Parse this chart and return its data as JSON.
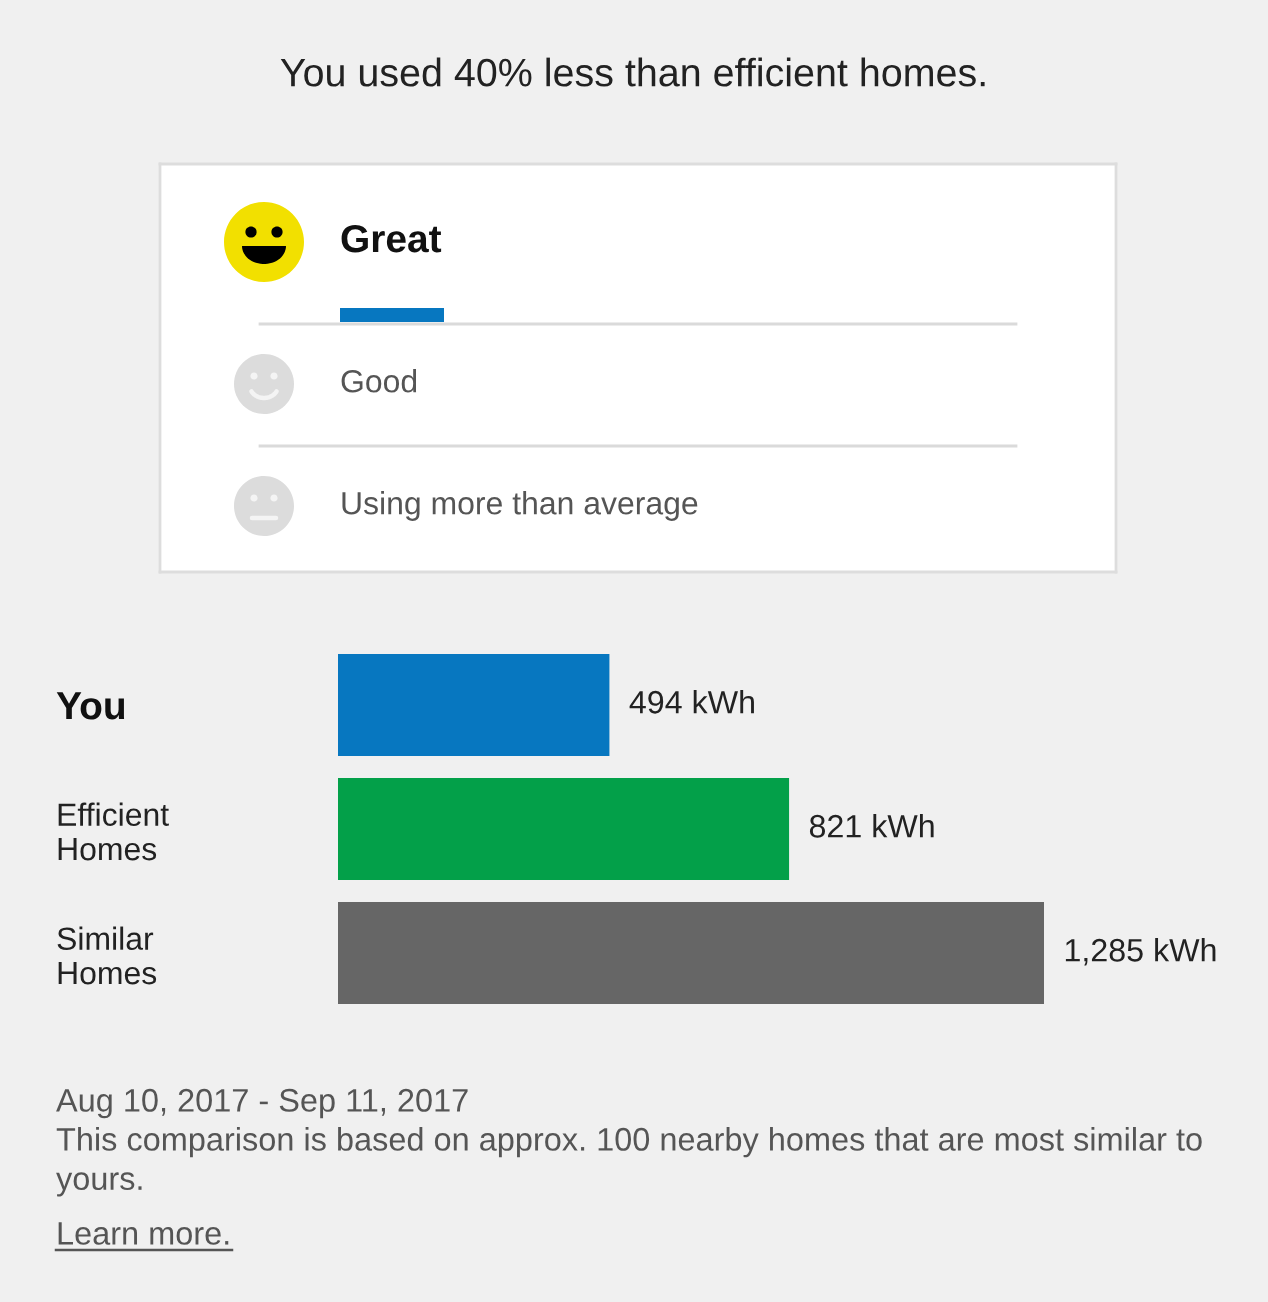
{
  "chart_data": [
    {
      "type": "other",
      "title": "You used 40% less than efficient homes.",
      "annotations": [
        "Great",
        "Good",
        "Using more than average"
      ]
    },
    {
      "type": "bar",
      "orientation": "horizontal",
      "categories": [
        "You",
        "Efficient\nHomes",
        "Similar\nHomes"
      ],
      "values": [
        494,
        821,
        1285
      ],
      "colors": [
        "#0777c0",
        "#03a049",
        "#666666"
      ],
      "value_labels": [
        "494 kWh",
        "821 kWh",
        "1,285 kWh"
      ],
      "tick_labels": "y",
      "annotations": [
        "Aug 10, 2017 - Sep 11, 2017",
        "This comparison is based on approx. 100 nearby homes that are most similar to yours.",
        "Learn more."
      ]
    }
  ]
}
